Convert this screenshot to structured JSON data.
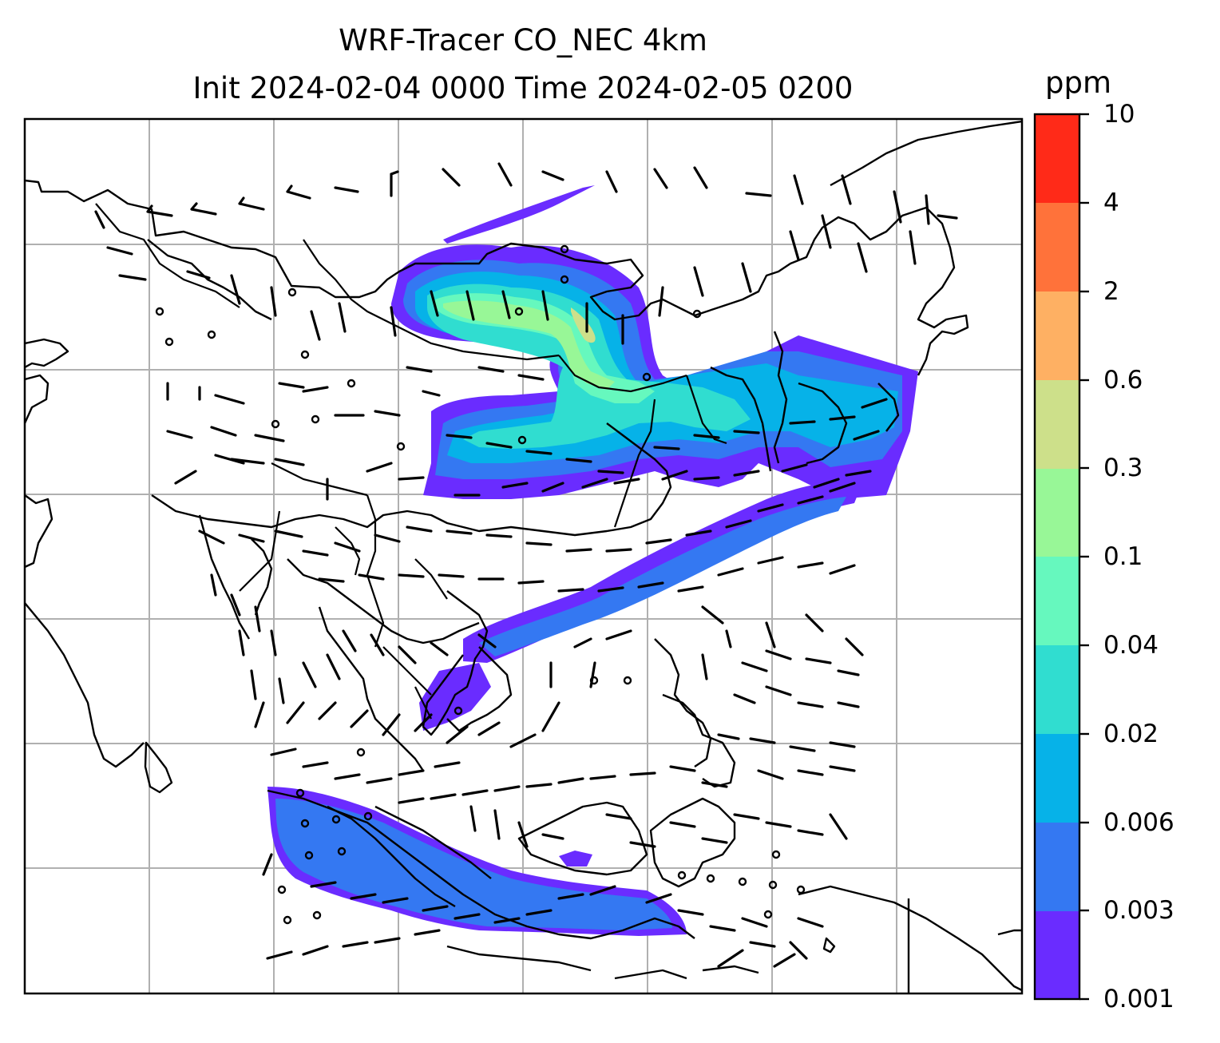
{
  "title": {
    "line1": "WRF-Tracer CO_NEC 4km",
    "line2": "Init 2024-02-04 0000 Time 2024-02-05 0200"
  },
  "colorbar": {
    "unit": "ppm",
    "levels": [
      "0.001",
      "0.003",
      "0.006",
      "0.02",
      "0.04",
      "0.1",
      "0.3",
      "0.6",
      "2",
      "4",
      "10"
    ],
    "colors": [
      "#6a2cff",
      "#3478f2",
      "#06b2e8",
      "#30ddd0",
      "#66f8be",
      "#98f797",
      "#cde08a",
      "#feb063",
      "#ff723a",
      "#ff2a18"
    ]
  },
  "map": {
    "plume_colors": {
      "violet": "#6a2cff",
      "blue": "#3478f2",
      "cyan": "#06b2e8",
      "teal": "#30ddd0",
      "aqua": "#66f8be",
      "green": "#98f797",
      "yellow": "#cde08a"
    }
  }
}
